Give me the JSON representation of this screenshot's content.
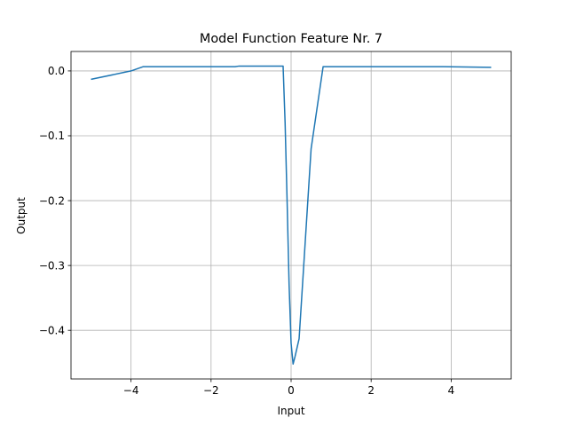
{
  "chart_data": {
    "type": "line",
    "title": "Model Function Feature Nr. 7",
    "xlabel": "Input",
    "ylabel": "Output",
    "xlim": [
      -5.5,
      5.5
    ],
    "ylim": [
      -0.475,
      0.03
    ],
    "xticks": [
      -4,
      -2,
      0,
      2,
      4
    ],
    "xtick_labels": [
      "−4",
      "−2",
      "0",
      "2",
      "4"
    ],
    "yticks": [
      0.0,
      -0.1,
      -0.2,
      -0.3,
      -0.4
    ],
    "ytick_labels": [
      "0.0",
      "−0.1",
      "−0.2",
      "−0.3",
      "−0.4"
    ],
    "grid": true,
    "series": [
      {
        "color": "#1f77b4",
        "x": [
          -5.0,
          -4.0,
          -3.7,
          -1.4,
          -1.3,
          -0.2,
          -0.15,
          -0.1,
          -0.05,
          0.0,
          0.05,
          0.1,
          0.2,
          0.5,
          0.8,
          3.8,
          5.0
        ],
        "y": [
          -0.013,
          0.0,
          0.0065,
          0.0065,
          0.0075,
          0.0075,
          -0.08,
          -0.2,
          -0.33,
          -0.42,
          -0.452,
          -0.44,
          -0.413,
          -0.12,
          0.0065,
          0.0065,
          0.0055
        ]
      }
    ]
  }
}
